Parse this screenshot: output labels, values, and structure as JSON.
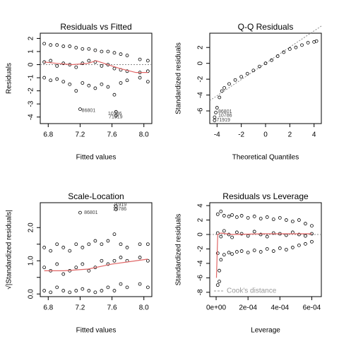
{
  "chart_data": [
    {
      "type": "scatter",
      "title": "Residuals vs Fitted",
      "xlabel": "Fitted values",
      "ylabel": "Residuals",
      "xlim": [
        6.7,
        8.1
      ],
      "xticks": [
        6.8,
        7.2,
        7.6,
        {
          "value": 8.0,
          "label": "8.0"
        }
      ],
      "ylim": [
        -4.5,
        2.4
      ],
      "yticks": [
        -4,
        -3,
        -2,
        -1,
        0,
        1,
        2
      ],
      "points": {
        "x": [
          6.75,
          6.83,
          6.91,
          6.99,
          7.07,
          7.15,
          7.23,
          7.31,
          7.39,
          7.47,
          7.55,
          7.63,
          7.71,
          7.79,
          7.95,
          8.05,
          6.75,
          6.83,
          6.91,
          6.99,
          7.07,
          7.15,
          7.23,
          7.31,
          7.39,
          7.47,
          7.55,
          7.63,
          7.71,
          7.79,
          7.95,
          8.05,
          6.75,
          6.83,
          6.91,
          6.99,
          7.07,
          7.15,
          7.23,
          7.31,
          7.39,
          7.47,
          7.55,
          7.63,
          7.71,
          7.79,
          7.95,
          8.05,
          7.2,
          7.65,
          7.65
        ],
        "y": [
          1.6,
          1.5,
          1.5,
          1.4,
          1.4,
          1.3,
          1.2,
          1.2,
          1.1,
          1.0,
          1.0,
          0.9,
          0.8,
          0.7,
          0.4,
          0.3,
          0.2,
          0.3,
          -0.1,
          0.1,
          0.0,
          -0.2,
          0.1,
          0.3,
          0.2,
          -0.1,
          0.0,
          -0.3,
          -0.4,
          -0.5,
          -0.6,
          -0.5,
          -1.0,
          -1.2,
          -1.1,
          -1.3,
          -1.5,
          -2.0,
          -1.4,
          -1.6,
          -1.8,
          -1.5,
          -1.7,
          -2.3,
          -1.4,
          -1.2,
          -1.0,
          -1.3,
          -3.4,
          -3.6,
          -3.9
        ]
      },
      "smooth": {
        "color": "#e06666",
        "x": [
          6.75,
          6.9,
          7.1,
          7.3,
          7.4,
          7.5,
          7.7,
          7.9,
          8.05
        ],
        "y": [
          0.2,
          0.1,
          0,
          0.1,
          0.3,
          0.1,
          -0.3,
          -0.6,
          -0.6
        ]
      },
      "hline": 0,
      "annotations": [
        {
          "text": "86801",
          "x": 7.22,
          "y": -3.5
        },
        {
          "text": "10786",
          "x": 7.55,
          "y": -3.75
        },
        {
          "text": "71919",
          "x": 7.56,
          "y": -4.0
        }
      ]
    },
    {
      "type": "scatter",
      "title": "Q-Q Residuals",
      "xlabel": "Theoretical Quantiles",
      "ylabel": "Standardized residuals",
      "xlim": [
        -4.6,
        4.6
      ],
      "xticks": [
        -4,
        -2,
        0,
        2,
        4
      ],
      "ylim": [
        -7.6,
        3.8
      ],
      "yticks": [
        -6,
        -4,
        -2,
        0,
        2
      ],
      "points": {
        "x": [
          -4.2,
          -4.0,
          -3.8,
          -3.6,
          -3.4,
          -3.0,
          -2.5,
          -2,
          -1.5,
          -1,
          -0.5,
          0,
          0.5,
          1,
          1.5,
          2,
          2.5,
          3,
          3.5,
          4,
          4.2,
          -4.2,
          -4.1
        ],
        "y": [
          -6.8,
          -5.6,
          -4.3,
          -3.5,
          -3.1,
          -2.6,
          -2.1,
          -1.7,
          -1.3,
          -0.9,
          -0.4,
          0,
          0.4,
          0.9,
          1.4,
          1.8,
          2.0,
          2.3,
          2.6,
          2.7,
          2.8,
          -7.2,
          -6.2
        ]
      },
      "refline": {
        "x": [
          -4.6,
          4.6
        ],
        "y": [
          -4.7,
          4.7
        ]
      },
      "annotations": [
        {
          "text": "86801",
          "x": -3.9,
          "y": -6.1
        },
        {
          "text": "10786",
          "x": -3.9,
          "y": -6.6
        },
        {
          "text": "71919",
          "x": -4.05,
          "y": -7.15
        }
      ]
    },
    {
      "type": "scatter",
      "title": "Scale-Location",
      "xlabel": "Fitted values",
      "ylabel": "√|Standardized residuals|",
      "xlim": [
        6.7,
        8.1
      ],
      "xticks": [
        6.8,
        7.2,
        7.6,
        {
          "value": 8.0,
          "label": "8.0"
        }
      ],
      "ylim": [
        -0.08,
        2.75
      ],
      "yticks": [
        {
          "value": 0,
          "label": "0.0"
        },
        {
          "value": 0.5,
          "label": ""
        },
        {
          "value": 1,
          "label": "1.0"
        },
        {
          "value": 1.5,
          "label": ""
        },
        {
          "value": 2,
          "label": "2.0"
        }
      ],
      "points": {
        "x": [
          6.75,
          6.83,
          6.91,
          6.99,
          7.07,
          7.15,
          7.23,
          7.31,
          7.39,
          7.47,
          7.55,
          7.63,
          7.71,
          7.79,
          7.95,
          8.05,
          6.75,
          6.83,
          6.91,
          6.99,
          7.07,
          7.15,
          7.23,
          7.31,
          7.39,
          7.47,
          7.55,
          7.63,
          7.71,
          7.79,
          7.95,
          8.05,
          6.75,
          6.83,
          6.91,
          6.99,
          7.07,
          7.15,
          7.23,
          7.31,
          7.39,
          7.47,
          7.55,
          7.63,
          7.71,
          7.79,
          7.95,
          8.05,
          7.2,
          7.65,
          7.65
        ],
        "y": [
          1.4,
          1.3,
          1.5,
          1.4,
          1.3,
          1.5,
          1.4,
          1.5,
          1.6,
          1.5,
          1.6,
          1.8,
          1.5,
          1.4,
          1.5,
          1.5,
          0.8,
          0.7,
          0.9,
          0.6,
          0.7,
          0.8,
          0.9,
          0.7,
          0.8,
          1.0,
          0.9,
          1.0,
          1.1,
          1.0,
          1.1,
          1.0,
          0.1,
          0.05,
          0.2,
          0.1,
          0.05,
          0.1,
          0.15,
          0.1,
          0.05,
          0.1,
          0.2,
          0.1,
          0.3,
          0.2,
          0.3,
          0.2,
          2.45,
          2.55,
          2.65
        ]
      },
      "smooth": {
        "color": "#e06666",
        "x": [
          6.75,
          7.0,
          7.3,
          7.6,
          7.9,
          8.05
        ],
        "y": [
          0.7,
          0.7,
          0.75,
          0.9,
          1.0,
          1.05
        ]
      },
      "annotations": [
        {
          "text": "86801",
          "x": 7.25,
          "y": 2.45
        },
        {
          "text": "10786",
          "x": 7.61,
          "y": 2.56
        },
        {
          "text": "71919",
          "x": 7.61,
          "y": 2.68
        }
      ]
    },
    {
      "type": "scatter",
      "title": "Residuals vs Leverage",
      "xlabel": "Leverage",
      "ylabel": "Standardized residuals",
      "xlim": [
        -4e-05,
        0.00066
      ],
      "xticks": [
        {
          "value": 0,
          "label": "0e+00"
        },
        {
          "value": 0.0002,
          "label": "2e-04"
        },
        {
          "value": 0.0004,
          "label": "4e-04"
        },
        {
          "value": 0.0006,
          "label": "6e-04"
        }
      ],
      "ylim": [
        -8.6,
        4.4
      ],
      "yticks": [
        -8,
        -6,
        -4,
        -2,
        0,
        2,
        4
      ],
      "points": {
        "x": [
          1e-05,
          3e-05,
          5e-05,
          8e-05,
          0.0001,
          0.00013,
          0.00016,
          0.0002,
          0.00024,
          0.00028,
          0.00032,
          0.00036,
          0.0004,
          0.00044,
          0.00048,
          0.00052,
          0.00056,
          0.0006,
          1e-05,
          3e-05,
          5e-05,
          8e-05,
          0.0001,
          0.00013,
          0.00016,
          0.0002,
          0.00024,
          0.00028,
          0.00032,
          0.00036,
          0.0004,
          0.00044,
          0.00048,
          0.00052,
          0.00056,
          0.0006,
          1e-05,
          3e-05,
          5e-05,
          8e-05,
          0.0001,
          0.00013,
          0.00016,
          0.0002,
          0.00024,
          0.00028,
          0.00032,
          0.00036,
          0.0004,
          0.00044,
          0.00048,
          0.00052,
          0.00056,
          0.0006,
          1e-05,
          2e-05,
          2e-05
        ],
        "y": [
          2.8,
          3.2,
          2.6,
          2.5,
          2.7,
          2.4,
          2.6,
          2.3,
          2.5,
          2.2,
          2.4,
          2.1,
          2.3,
          2.0,
          1.8,
          2.0,
          1.5,
          1.2,
          0.2,
          -0.3,
          0.5,
          0.0,
          -0.4,
          0.3,
          0.1,
          -0.2,
          0.4,
          0.0,
          -0.3,
          0.2,
          0.1,
          -0.1,
          0.3,
          0.0,
          -0.2,
          0.1,
          -2.6,
          -3.5,
          -2.8,
          -2.5,
          -2.7,
          -2.4,
          -2.3,
          -2.5,
          -2.2,
          -2.4,
          -2.0,
          -2.3,
          -1.9,
          -2.1,
          -1.8,
          -1.5,
          -1.3,
          -1.0,
          -7,
          -6.5,
          -5
        ]
      },
      "smooth": {
        "color": "#e06666",
        "x": [
          2e-06,
          1e-05,
          3e-05,
          0.0001,
          0.0003,
          0.0006
        ],
        "y": [
          -6,
          0,
          0.2,
          0,
          0.1,
          0.1
        ]
      },
      "hline": 0,
      "cook": {
        "name": "Cook's distance",
        "color": "#999999",
        "legend": "bottomleft"
      }
    }
  ]
}
